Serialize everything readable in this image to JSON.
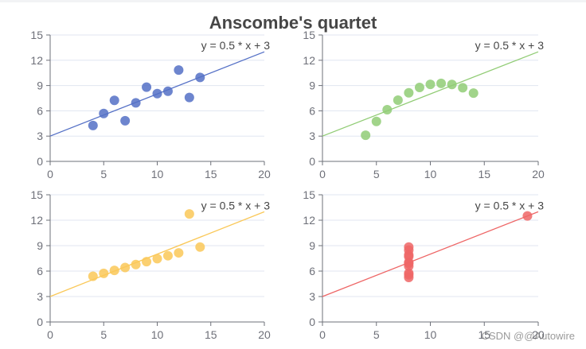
{
  "title": "Anscombe's quartet",
  "watermark": "CSDN @@Autowire",
  "chart_data": [
    {
      "type": "scatter",
      "xlim": [
        0,
        20
      ],
      "ylim": [
        0,
        15
      ],
      "xticks": [
        0,
        5,
        10,
        15,
        20
      ],
      "yticks": [
        0,
        3,
        6,
        9,
        12,
        15
      ],
      "grid": true,
      "color": "#5470c6",
      "points": [
        [
          10,
          8.04
        ],
        [
          8,
          6.95
        ],
        [
          13,
          7.58
        ],
        [
          9,
          8.81
        ],
        [
          11,
          8.33
        ],
        [
          14,
          9.96
        ],
        [
          6,
          7.24
        ],
        [
          4,
          4.26
        ],
        [
          12,
          10.84
        ],
        [
          7,
          4.82
        ],
        [
          5,
          5.68
        ]
      ],
      "line": {
        "from": [
          0,
          3
        ],
        "to": [
          20,
          13
        ],
        "label": "y = 0.5 * x + 3"
      }
    },
    {
      "type": "scatter",
      "xlim": [
        0,
        20
      ],
      "ylim": [
        0,
        15
      ],
      "xticks": [
        0,
        5,
        10,
        15,
        20
      ],
      "yticks": [
        0,
        3,
        6,
        9,
        12,
        15
      ],
      "grid": true,
      "color": "#91cc75",
      "points": [
        [
          10,
          9.14
        ],
        [
          8,
          8.14
        ],
        [
          13,
          8.74
        ],
        [
          9,
          8.77
        ],
        [
          11,
          9.26
        ],
        [
          14,
          8.1
        ],
        [
          6,
          6.13
        ],
        [
          4,
          3.1
        ],
        [
          12,
          9.13
        ],
        [
          7,
          7.26
        ],
        [
          5,
          4.74
        ]
      ],
      "line": {
        "from": [
          0,
          3
        ],
        "to": [
          20,
          13
        ],
        "label": "y = 0.5 * x + 3"
      }
    },
    {
      "type": "scatter",
      "xlim": [
        0,
        20
      ],
      "ylim": [
        0,
        15
      ],
      "xticks": [
        0,
        5,
        10,
        15,
        20
      ],
      "yticks": [
        0,
        3,
        6,
        9,
        12,
        15
      ],
      "grid": true,
      "color": "#fac858",
      "points": [
        [
          10,
          7.46
        ],
        [
          8,
          6.77
        ],
        [
          13,
          12.74
        ],
        [
          9,
          7.11
        ],
        [
          11,
          7.81
        ],
        [
          14,
          8.84
        ],
        [
          6,
          6.08
        ],
        [
          4,
          5.39
        ],
        [
          12,
          8.15
        ],
        [
          7,
          6.42
        ],
        [
          5,
          5.73
        ]
      ],
      "line": {
        "from": [
          0,
          3
        ],
        "to": [
          20,
          13
        ],
        "label": "y = 0.5 * x + 3"
      }
    },
    {
      "type": "scatter",
      "xlim": [
        0,
        20
      ],
      "ylim": [
        0,
        15
      ],
      "xticks": [
        0,
        5,
        10,
        15,
        20
      ],
      "yticks": [
        0,
        3,
        6,
        9,
        12,
        15
      ],
      "grid": true,
      "color": "#ee6666",
      "points": [
        [
          8,
          6.58
        ],
        [
          8,
          5.76
        ],
        [
          8,
          7.71
        ],
        [
          8,
          8.84
        ],
        [
          8,
          8.47
        ],
        [
          8,
          7.04
        ],
        [
          8,
          5.25
        ],
        [
          19,
          12.5
        ],
        [
          8,
          5.56
        ],
        [
          8,
          7.91
        ],
        [
          8,
          6.89
        ]
      ],
      "line": {
        "from": [
          0,
          3
        ],
        "to": [
          20,
          13
        ],
        "label": "y = 0.5 * x + 3"
      }
    }
  ]
}
